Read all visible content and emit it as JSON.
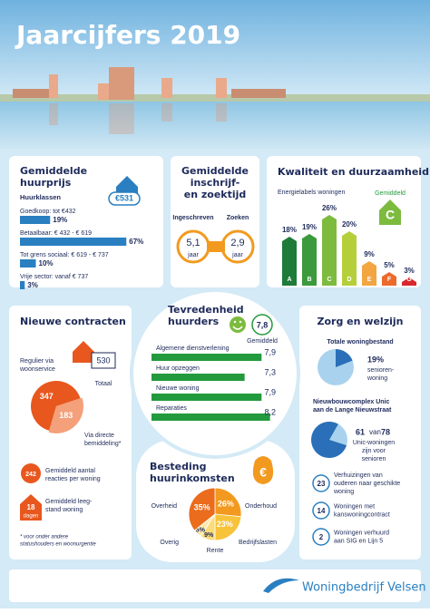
{
  "header": {
    "title": "Jaarcijfers 2019"
  },
  "huurprijs": {
    "title": [
      "Gemiddelde",
      "huurprijs"
    ],
    "amount": "€531",
    "subtitle": "Huurklassen",
    "xlim": [
      0,
      80
    ],
    "color": "#2a7fc1",
    "items": [
      {
        "label": "Goedkoop: tot €432",
        "value": 19,
        "value_label": "19%"
      },
      {
        "label": "Betaalbaar: € 432 - € 619",
        "value": 67,
        "value_label": "67%"
      },
      {
        "label": "Tot grens sociaal: € 619 - € 737",
        "value": 10,
        "value_label": "10%"
      },
      {
        "label": "Vrije sector: vanaf € 737",
        "value": 3,
        "value_label": "3%"
      }
    ]
  },
  "zoektijd": {
    "title": [
      "Gemiddelde",
      "inschrijf-",
      "en zoektijd"
    ],
    "items": [
      {
        "label": "Ingeschreven",
        "value": "5,1",
        "unit": "jaar"
      },
      {
        "label": "Zoeken",
        "value": "2,9",
        "unit": "jaar"
      }
    ]
  },
  "kwaliteit": {
    "title": "Kwaliteit en duurzaamheid",
    "subtitle": "Energielabels woningen",
    "average_label": "Gemiddeld",
    "average": "C",
    "ylim": [
      0,
      30
    ],
    "bars": [
      {
        "label": "A",
        "value": 18,
        "value_label": "18%",
        "color": "#1e7b3a"
      },
      {
        "label": "B",
        "value": 19,
        "value_label": "19%",
        "color": "#3a9a3c"
      },
      {
        "label": "C",
        "value": 26,
        "value_label": "26%",
        "color": "#7dbb3f"
      },
      {
        "label": "D",
        "value": 20,
        "value_label": "20%",
        "color": "#b5cf3a"
      },
      {
        "label": "E",
        "value": 9,
        "value_label": "9%",
        "color": "#f2a541"
      },
      {
        "label": "F",
        "value": 5,
        "value_label": "5%",
        "color": "#ec6a2c"
      },
      {
        "label": "G",
        "value": 3,
        "value_label": "3%",
        "color": "#d9262c"
      }
    ]
  },
  "tevredenheid": {
    "title": [
      "Tevredenheid",
      "huurders"
    ],
    "overall": "7,8",
    "overall_label": "Gemiddeld",
    "xlim": [
      4,
      8.5
    ],
    "color": "#239a3d",
    "items": [
      {
        "label": "Algemene dienstverlening",
        "value": 7.9,
        "value_label": "7,9"
      },
      {
        "label": "Huur opzeggen",
        "value": 7.3,
        "value_label": "7,3"
      },
      {
        "label": "Nieuwe woning",
        "value": 7.9,
        "value_label": "7,9"
      },
      {
        "label": "Reparaties",
        "value": 8.2,
        "value_label": "8,2"
      }
    ]
  },
  "contracten": {
    "title": "Nieuwe contracten",
    "total": {
      "value": 530,
      "label": "Totaal"
    },
    "slices": [
      {
        "label": [
          "Regulier via",
          "woonservice"
        ],
        "value": 347,
        "color": "#e8571e"
      },
      {
        "label": [
          "Via directe",
          "bemiddeling*"
        ],
        "value": 183,
        "color": "#f4a07a"
      }
    ],
    "stats": [
      {
        "value": "242",
        "label": [
          "Gemiddeld aantal",
          "reacties per woning"
        ]
      },
      {
        "value": "18",
        "unit": "dagen",
        "label": [
          "Gemiddeld leeg-",
          "stand woning"
        ]
      }
    ],
    "footnote": [
      "* voor onder andere",
      "statushouders en woonurgentie"
    ]
  },
  "besteding": {
    "title": [
      "Besteding",
      "huurinkomsten"
    ],
    "slices": [
      {
        "label": "Onderhoud",
        "value": 26,
        "value_label": "26%",
        "color": "#f29a1f"
      },
      {
        "label": "Bedrijfslasten",
        "value": 23,
        "value_label": "23%",
        "color": "#f7c33b"
      },
      {
        "label": "Rente",
        "value": 9,
        "value_label": "9%",
        "color": "#fadb7a"
      },
      {
        "label": "Overig",
        "value": 5,
        "value_label": "5%",
        "color": "#fce9ad"
      },
      {
        "label": "Overheid",
        "value": 35,
        "value_label": "35%",
        "color": "#ea6c1c"
      }
    ]
  },
  "zorg": {
    "title": "Zorg en welzijn",
    "woningbestand": {
      "title": "Totale woningbestand",
      "value": 19,
      "value_label": "19%",
      "label": [
        "senioren-",
        "woning"
      ]
    },
    "unic": {
      "title": [
        "Nieuwbouwcomplex Unic",
        "aan de Lange Nieuwstraat"
      ],
      "value": 61,
      "connector": "van",
      "total": 78,
      "label": [
        "Unic-woningen",
        "zijn voor",
        "senioren"
      ]
    },
    "list": [
      {
        "value": 23,
        "label": [
          "Verhuizingen van",
          "ouderen naar geschikte",
          "woning"
        ]
      },
      {
        "value": 14,
        "label": [
          "Woningen met",
          "kanswoningcontract"
        ]
      },
      {
        "value": 2,
        "label": [
          "Woningen verhuurd",
          "aan SIG en Lijn 5"
        ]
      }
    ]
  },
  "footer": {
    "logo": "Woningbedrijf Velsen"
  }
}
